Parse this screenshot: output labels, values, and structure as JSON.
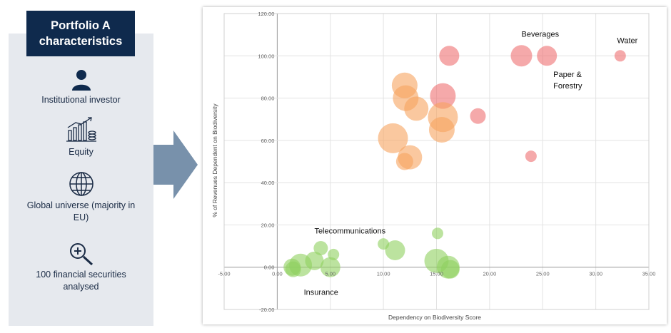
{
  "panel": {
    "title": "Portfolio A\ncharacteristics",
    "items": [
      {
        "icon": "person-icon",
        "label": "Institutional investor"
      },
      {
        "icon": "money-chart-icon",
        "label": "Equity"
      },
      {
        "icon": "globe-icon",
        "label": "Global universe (majority in EU)"
      },
      {
        "icon": "zoom-in-icon",
        "label": "100 financial securities analysed"
      }
    ]
  },
  "colors": {
    "panel_bg": "#e6e9ee",
    "title_bg": "#0f2a4d",
    "arrow": "#7891ab",
    "red": "#ef6f72",
    "orange": "#f6a35f",
    "green": "#8fd15f"
  },
  "chart_data": {
    "type": "scatter",
    "variant": "bubble",
    "xlabel": "Dependency on Biodiversity Score",
    "ylabel": "% of Revenues Dependent on Biodiversity",
    "xlim": [
      -5,
      35
    ],
    "ylim": [
      -20,
      120
    ],
    "x_ticks": [
      "-5.00",
      "0.00",
      "5.00",
      "10.00",
      "15.00",
      "20.00",
      "25.00",
      "30.00",
      "35.00"
    ],
    "y_ticks": [
      "-20.00",
      "0.00",
      "20.00",
      "40.00",
      "60.00",
      "80.00",
      "100.00",
      "120.00"
    ],
    "grid": true,
    "annotations": [
      {
        "text": "Beverages",
        "x": 23,
        "y": 109
      },
      {
        "text": "Water",
        "x": 32,
        "y": 106
      },
      {
        "text": "Paper &",
        "x": 26,
        "y": 90
      },
      {
        "text": "Forestry",
        "x": 26,
        "y": 84.5
      },
      {
        "text": "Telecommunications",
        "x": 3.5,
        "y": 16
      },
      {
        "text": "Insurance",
        "x": 2.5,
        "y": -13
      }
    ],
    "series": [
      {
        "color": "red",
        "points": [
          {
            "x": 16.2,
            "y": 100,
            "size": 14
          },
          {
            "x": 23.0,
            "y": 100,
            "size": 15
          },
          {
            "x": 25.4,
            "y": 100,
            "size": 14
          },
          {
            "x": 32.3,
            "y": 100,
            "size": 8
          },
          {
            "x": 15.6,
            "y": 81,
            "size": 18
          },
          {
            "x": 18.9,
            "y": 71.5,
            "size": 11
          },
          {
            "x": 23.9,
            "y": 52.5,
            "size": 8
          }
        ]
      },
      {
        "color": "orange",
        "points": [
          {
            "x": 12.0,
            "y": 86,
            "size": 18
          },
          {
            "x": 12.1,
            "y": 80,
            "size": 18
          },
          {
            "x": 13.1,
            "y": 75,
            "size": 17
          },
          {
            "x": 15.6,
            "y": 71,
            "size": 21
          },
          {
            "x": 15.5,
            "y": 65,
            "size": 18
          },
          {
            "x": 10.9,
            "y": 61,
            "size": 21
          },
          {
            "x": 12.5,
            "y": 52,
            "size": 17
          },
          {
            "x": 12.0,
            "y": 50,
            "size": 12
          }
        ]
      },
      {
        "color": "green",
        "points": [
          {
            "x": 15.1,
            "y": 16,
            "size": 8
          },
          {
            "x": 10.0,
            "y": 11,
            "size": 8
          },
          {
            "x": 11.1,
            "y": 8,
            "size": 14
          },
          {
            "x": 4.1,
            "y": 9,
            "size": 10
          },
          {
            "x": 5.3,
            "y": 6,
            "size": 8
          },
          {
            "x": 3.5,
            "y": 3,
            "size": 13
          },
          {
            "x": 2.2,
            "y": 1,
            "size": 16
          },
          {
            "x": 1.4,
            "y": 0,
            "size": 12
          },
          {
            "x": 1.5,
            "y": -1,
            "size": 11
          },
          {
            "x": 5.0,
            "y": 0,
            "size": 14
          },
          {
            "x": 15.0,
            "y": 3,
            "size": 17
          },
          {
            "x": 16.1,
            "y": 0,
            "size": 16
          },
          {
            "x": 16.3,
            "y": -1,
            "size": 13
          }
        ]
      }
    ]
  }
}
